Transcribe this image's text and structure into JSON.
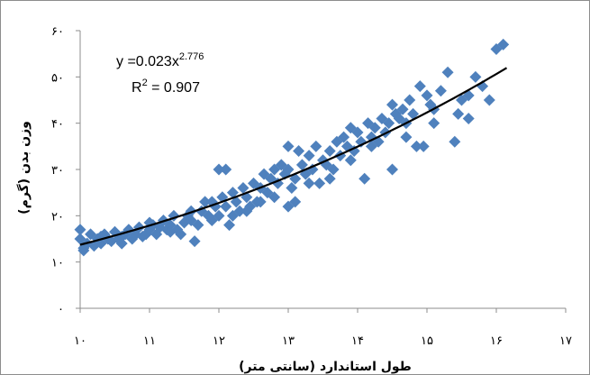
{
  "chart_data": {
    "type": "scatter",
    "title": "",
    "xlabel": "طول استاندارد (سانتی متر)",
    "ylabel": "وزن بدن (گرم)",
    "xlim": [
      10,
      17
    ],
    "ylim": [
      0,
      60
    ],
    "x_ticks": [
      10,
      11,
      12,
      13,
      14,
      15,
      16,
      17
    ],
    "x_tick_labels": [
      "۱۰",
      "۱۱",
      "۱۲",
      "۱۳",
      "۱۴",
      "۱۵",
      "۱۶",
      "۱۷"
    ],
    "y_ticks": [
      0,
      10,
      20,
      30,
      40,
      50,
      60
    ],
    "y_tick_labels": [
      "۰",
      "۱۰",
      "۲۰",
      "۳۰",
      "۴۰",
      "۵۰",
      "۶۰"
    ],
    "grid": false,
    "marker": "diamond",
    "marker_color": "#4f81bd",
    "trendline_color": "#000000",
    "trendline": {
      "type": "power",
      "a": 0.023,
      "b": 2.776,
      "equation_prefix": "y =0.023x",
      "equation_exponent": "2.776",
      "r2_prefix": "R",
      "r2_exponent": "2",
      "r2_value": " = 0.907"
    },
    "points": [
      [
        10.0,
        17
      ],
      [
        10.0,
        15
      ],
      [
        10.05,
        13
      ],
      [
        10.05,
        12.5
      ],
      [
        10.1,
        14
      ],
      [
        10.15,
        16
      ],
      [
        10.2,
        13.5
      ],
      [
        10.25,
        15
      ],
      [
        10.3,
        14
      ],
      [
        10.35,
        16
      ],
      [
        10.4,
        15
      ],
      [
        10.45,
        14.5
      ],
      [
        10.5,
        16.5
      ],
      [
        10.55,
        15
      ],
      [
        10.6,
        14
      ],
      [
        10.65,
        16
      ],
      [
        10.7,
        17
      ],
      [
        10.75,
        15
      ],
      [
        10.8,
        16
      ],
      [
        10.85,
        17.5
      ],
      [
        10.9,
        15.5
      ],
      [
        10.95,
        16
      ],
      [
        11.0,
        17
      ],
      [
        11.05,
        18
      ],
      [
        11.1,
        16
      ],
      [
        11.15,
        17.5
      ],
      [
        11.2,
        19
      ],
      [
        11.25,
        17
      ],
      [
        11.3,
        18
      ],
      [
        11.35,
        20
      ],
      [
        11.4,
        17
      ],
      [
        11.45,
        16
      ],
      [
        11.5,
        18.5
      ],
      [
        11.55,
        20
      ],
      [
        11.6,
        19
      ],
      [
        11.65,
        14.5
      ],
      [
        11.7,
        18
      ],
      [
        11.75,
        21
      ],
      [
        11.8,
        23
      ],
      [
        11.85,
        20
      ],
      [
        11.9,
        19
      ],
      [
        11.95,
        22
      ],
      [
        12.0,
        30
      ],
      [
        12.0,
        20
      ],
      [
        12.05,
        24
      ],
      [
        12.1,
        22
      ],
      [
        12.15,
        18
      ],
      [
        12.2,
        25
      ],
      [
        12.25,
        23
      ],
      [
        12.3,
        21
      ],
      [
        12.35,
        26
      ],
      [
        12.4,
        24
      ],
      [
        12.45,
        22
      ],
      [
        12.5,
        27
      ],
      [
        12.55,
        23
      ],
      [
        12.6,
        26
      ],
      [
        12.65,
        29
      ],
      [
        12.7,
        25
      ],
      [
        12.75,
        28
      ],
      [
        12.8,
        24
      ],
      [
        12.85,
        27
      ],
      [
        12.9,
        31
      ],
      [
        12.95,
        29
      ],
      [
        13.0,
        35
      ],
      [
        13.0,
        30
      ],
      [
        13.0,
        22
      ],
      [
        13.05,
        26
      ],
      [
        13.1,
        28
      ],
      [
        13.15,
        34
      ],
      [
        13.2,
        31
      ],
      [
        13.25,
        29
      ],
      [
        13.3,
        33
      ],
      [
        13.35,
        30
      ],
      [
        13.4,
        35
      ],
      [
        13.45,
        27
      ],
      [
        13.5,
        32
      ],
      [
        13.55,
        31
      ],
      [
        13.6,
        34
      ],
      [
        13.65,
        30
      ],
      [
        13.7,
        36
      ],
      [
        13.75,
        33
      ],
      [
        13.8,
        37
      ],
      [
        13.85,
        35
      ],
      [
        13.9,
        39
      ],
      [
        13.95,
        34
      ],
      [
        14.0,
        38
      ],
      [
        14.05,
        36
      ],
      [
        14.1,
        28
      ],
      [
        14.15,
        40
      ],
      [
        14.2,
        37
      ],
      [
        14.25,
        39
      ],
      [
        14.3,
        36
      ],
      [
        14.35,
        41
      ],
      [
        14.4,
        38
      ],
      [
        14.45,
        40
      ],
      [
        14.5,
        30
      ],
      [
        14.5,
        44
      ],
      [
        14.55,
        42
      ],
      [
        14.6,
        41
      ],
      [
        14.65,
        43
      ],
      [
        14.7,
        40
      ],
      [
        14.75,
        45
      ],
      [
        14.8,
        42
      ],
      [
        14.85,
        35
      ],
      [
        14.9,
        48
      ],
      [
        14.95,
        35
      ],
      [
        15.0,
        46
      ],
      [
        15.05,
        44
      ],
      [
        15.1,
        43
      ],
      [
        15.2,
        47
      ],
      [
        15.3,
        51
      ],
      [
        15.4,
        36
      ],
      [
        15.45,
        42
      ],
      [
        15.5,
        45
      ],
      [
        15.6,
        46
      ],
      [
        15.7,
        50
      ],
      [
        15.8,
        48
      ],
      [
        15.9,
        45
      ],
      [
        16.0,
        56
      ],
      [
        16.1,
        57
      ],
      [
        10.3,
        15.5
      ],
      [
        10.6,
        15.5
      ],
      [
        11.0,
        18.5
      ],
      [
        11.3,
        16.5
      ],
      [
        11.6,
        21
      ],
      [
        11.9,
        23
      ],
      [
        12.1,
        30
      ],
      [
        12.2,
        20
      ],
      [
        12.4,
        21
      ],
      [
        12.6,
        23
      ],
      [
        12.8,
        30
      ],
      [
        13.1,
        23
      ],
      [
        13.3,
        27
      ],
      [
        13.6,
        28
      ],
      [
        13.9,
        32
      ],
      [
        14.2,
        35
      ],
      [
        14.7,
        37
      ],
      [
        15.1,
        40
      ],
      [
        15.6,
        41
      ]
    ]
  }
}
